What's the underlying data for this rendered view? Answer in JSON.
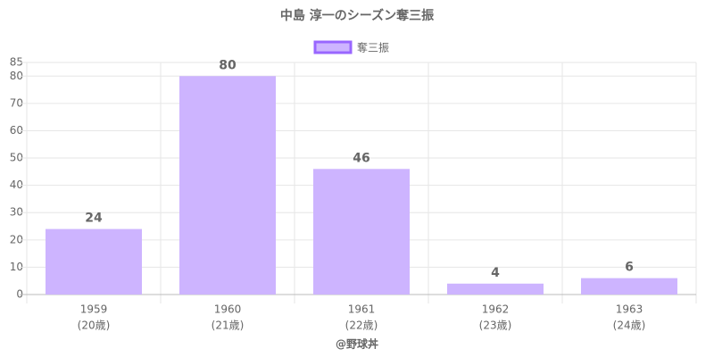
{
  "chart_data": {
    "type": "bar",
    "title": "中島 淳一のシーズン奪三振",
    "categories": [
      "1959",
      "1960",
      "1961",
      "1962",
      "1963"
    ],
    "category_sublabels": [
      "(20歳)",
      "(21歳)",
      "(22歳)",
      "(23歳)",
      "(24歳)"
    ],
    "series": [
      {
        "name": "奪三振",
        "color": "#cdb4ff",
        "border_color": "#9966ff",
        "values": [
          24,
          80,
          46,
          4,
          6
        ]
      }
    ],
    "x_label": "@野球丼",
    "ylim": [
      0,
      85
    ],
    "yticks": [
      0,
      10,
      20,
      30,
      40,
      50,
      60,
      70,
      80,
      85
    ],
    "grid": true
  }
}
